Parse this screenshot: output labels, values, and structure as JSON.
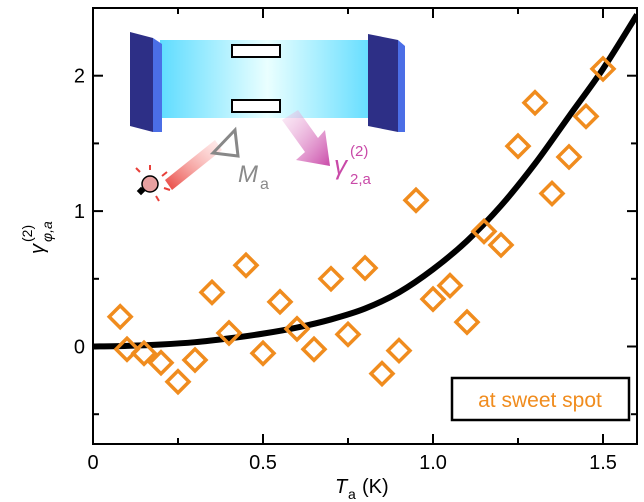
{
  "chart_data": {
    "type": "scatter",
    "title": "",
    "xlabel": {
      "symbol": "T",
      "subscript": "a",
      "unit": "(K)"
    },
    "ylabel": {
      "symbol": "γ",
      "superscript": "(2)",
      "subscript": "φ,a"
    },
    "xlim": [
      0,
      1.6
    ],
    "ylim": [
      -0.72,
      2.5
    ],
    "xticks": [
      {
        "value": 0,
        "label": "0"
      },
      {
        "value": 0.5,
        "label": "0.5"
      },
      {
        "value": 1.0,
        "label": "1.0"
      },
      {
        "value": 1.5,
        "label": "1.5"
      }
    ],
    "yticks": [
      {
        "value": 0,
        "label": "0"
      },
      {
        "value": 1,
        "label": "1"
      },
      {
        "value": 2,
        "label": "2"
      }
    ],
    "minor_yticks": [
      -0.5,
      0.5,
      1.5
    ],
    "minor_xticks": [
      0.25,
      0.75,
      1.25
    ],
    "grid": false,
    "annotation": "at sweet spot",
    "colors": {
      "markers": "#f08c1e",
      "fit": "#000000",
      "annotation": "#f08c1e"
    },
    "series": [
      {
        "marker": "diamond-open",
        "x": [
          0.08,
          0.1,
          0.15,
          0.2,
          0.25,
          0.3,
          0.35,
          0.4,
          0.45,
          0.5,
          0.55,
          0.6,
          0.65,
          0.7,
          0.75,
          0.8,
          0.85,
          0.9,
          0.95,
          1.0,
          1.05,
          1.1,
          1.15,
          1.2,
          1.25,
          1.3,
          1.35,
          1.4,
          1.45,
          1.5
        ],
        "y": [
          0.22,
          -0.02,
          -0.05,
          -0.12,
          -0.26,
          -0.1,
          0.4,
          0.1,
          0.6,
          -0.05,
          0.33,
          0.13,
          -0.02,
          0.5,
          0.09,
          0.58,
          -0.2,
          -0.03,
          1.08,
          0.35,
          0.45,
          0.18,
          0.85,
          0.75,
          1.48,
          1.8,
          1.13,
          1.4,
          1.7,
          2.05
        ]
      }
    ],
    "fit_curve": {
      "style": "solid",
      "x": [
        0,
        0.1,
        0.2,
        0.3,
        0.4,
        0.5,
        0.6,
        0.7,
        0.8,
        0.9,
        1.0,
        1.1,
        1.2,
        1.3,
        1.4,
        1.5,
        1.6
      ],
      "y": [
        0,
        0.005,
        0.015,
        0.032,
        0.06,
        0.095,
        0.14,
        0.2,
        0.28,
        0.4,
        0.57,
        0.78,
        1.04,
        1.35,
        1.7,
        2.05,
        2.45
      ]
    },
    "inset": {
      "label_M": {
        "symbol": "M",
        "subscript": "a"
      },
      "label_gamma": {
        "symbol": "γ",
        "superscript": "(2)",
        "subscript": "2,a"
      },
      "colors": {
        "gamma_arrow": "#c94aa8",
        "mirror": "#3b3f9c",
        "cavity": "#7fe6ff",
        "laser": "#e8403a",
        "meter": "#888888"
      }
    }
  }
}
